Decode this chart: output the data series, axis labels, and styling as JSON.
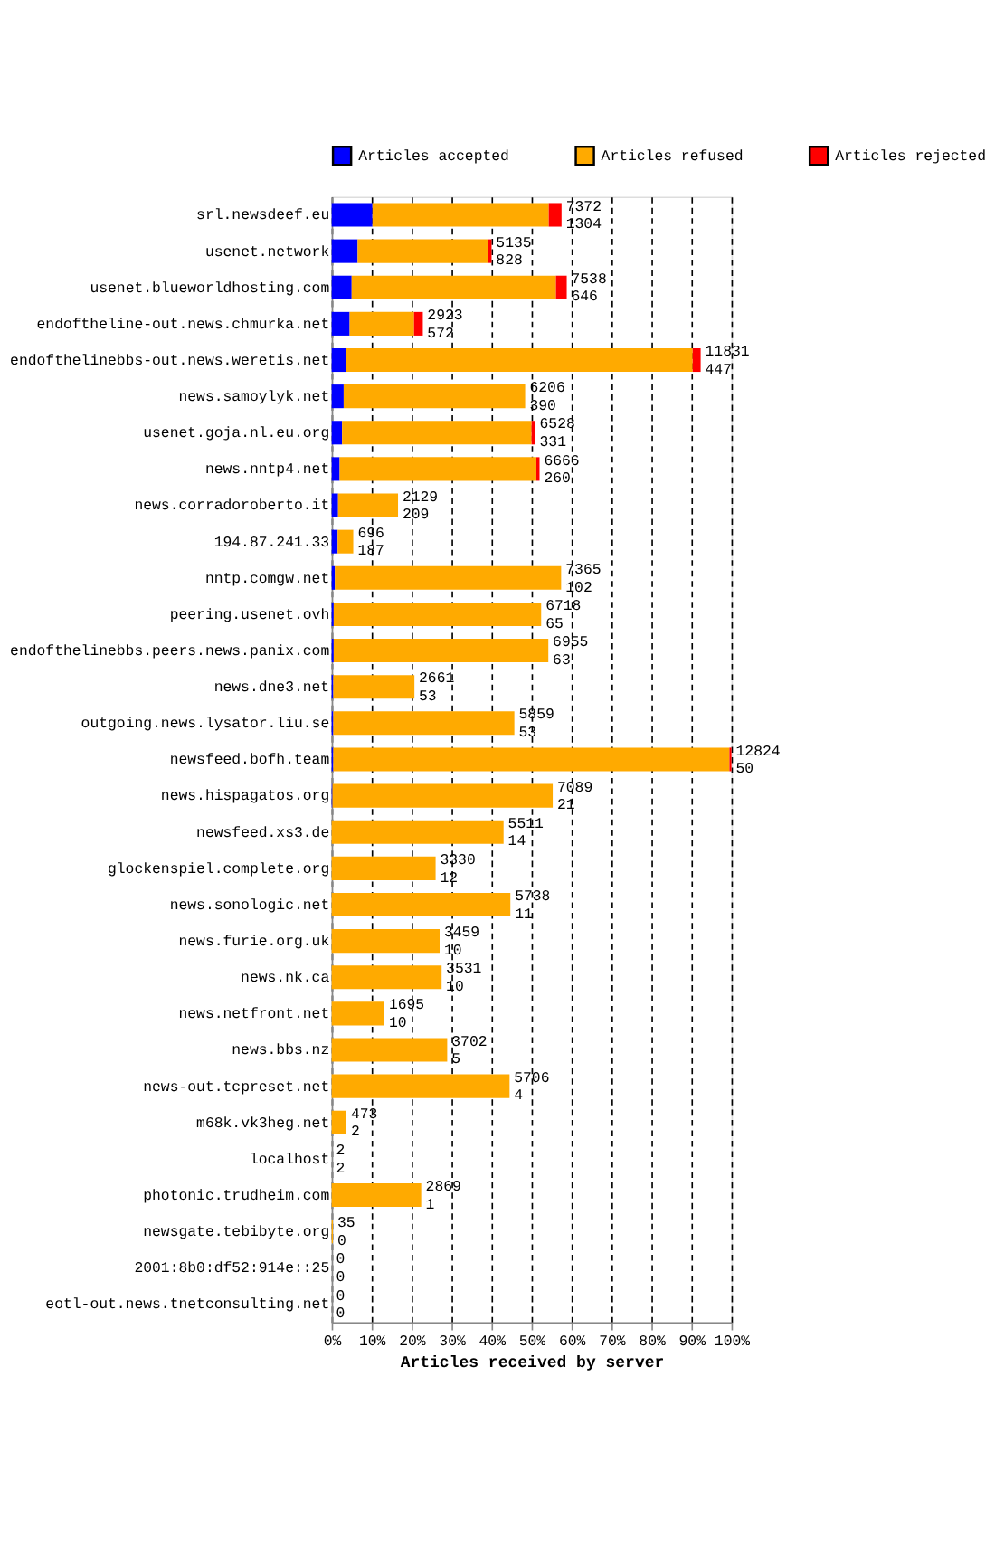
{
  "chart_data": {
    "type": "bar",
    "orientation": "horizontal",
    "stacked": true,
    "xlabel": "Articles received by server",
    "categories": [
      "srl.newsdeef.eu",
      "usenet.network",
      "usenet.blueworldhosting.com",
      "endoftheline-out.news.chmurka.net",
      "endofthelinebbs-out.news.weretis.net",
      "news.samoylyk.net",
      "usenet.goja.nl.eu.org",
      "news.nntp4.net",
      "news.corradoroberto.it",
      "194.87.241.33",
      "nntp.comgw.net",
      "peering.usenet.ovh",
      "endofthelinebbs.peers.news.panix.com",
      "news.dne3.net",
      "outgoing.news.lysator.liu.se",
      "newsfeed.bofh.team",
      "news.hispagatos.org",
      "newsfeed.xs3.de",
      "glockenspiel.complete.org",
      "news.sonologic.net",
      "news.furie.org.uk",
      "news.nk.ca",
      "news.netfront.net",
      "news.bbs.nz",
      "news-out.tcpreset.net",
      "m68k.vk3heg.net",
      "localhost",
      "photonic.trudheim.com",
      "newsgate.tebibyte.org",
      "2001:8b0:df52:914e::25",
      "eotl-out.news.tnetconsulting.net"
    ],
    "series": [
      {
        "name": "Articles accepted",
        "color": "#0000ff",
        "values": [
          10.2,
          6.5,
          5.0,
          4.5,
          3.5,
          3.0,
          2.6,
          2.0,
          1.6,
          1.5,
          0.8,
          0.5,
          0.5,
          0.4,
          0.4,
          0.4,
          0.2,
          0,
          0,
          0,
          0,
          0,
          0,
          0,
          0,
          0,
          0,
          0,
          0,
          0,
          0
        ]
      },
      {
        "name": "Articles refused",
        "color": "#ffaa00",
        "values": [
          44.1,
          32.6,
          51.1,
          16.1,
          86.8,
          45.4,
          47.4,
          49.2,
          15.0,
          3.9,
          56.6,
          51.9,
          53.7,
          20.3,
          45.3,
          99.1,
          55.1,
          43.0,
          26.0,
          44.7,
          27.0,
          27.5,
          13.2,
          28.9,
          44.5,
          3.7,
          0,
          22.4,
          0.3,
          0,
          0
        ]
      },
      {
        "name": "Articles rejected",
        "color": "#ff0000",
        "values": [
          3.2,
          0.9,
          2.7,
          2.2,
          2.0,
          0,
          0.9,
          0.8,
          0,
          0,
          0,
          0,
          0,
          0,
          0,
          0.5,
          0,
          0,
          0,
          0,
          0,
          0,
          0,
          0,
          0,
          0,
          0,
          0,
          0,
          0,
          0
        ]
      }
    ],
    "annotations": [
      {
        "text": "7372",
        "x": 57.5,
        "y": "srl.newsdeef.eu"
      },
      {
        "text": "1304",
        "x": 57.5,
        "y": "srl.newsdeef.eu"
      },
      {
        "text": "5135",
        "x": 40.0,
        "y": "usenet.network"
      },
      {
        "text": "828",
        "x": 40.0,
        "y": "usenet.network"
      },
      {
        "text": "7538",
        "x": 58.8,
        "y": "usenet.blueworldhosting.com"
      },
      {
        "text": "646",
        "x": 58.8,
        "y": "usenet.blueworldhosting.com"
      },
      {
        "text": "2923",
        "x": 22.8,
        "y": "endoftheline-out.news.chmurka.net"
      },
      {
        "text": "572",
        "x": 22.8,
        "y": "endoftheline-out.news.chmurka.net"
      },
      {
        "text": "11831",
        "x": 92.3,
        "y": "endofthelinebbs-out.news.weretis.net"
      },
      {
        "text": "447",
        "x": 92.3,
        "y": "endofthelinebbs-out.news.weretis.net"
      },
      {
        "text": "6206",
        "x": 48.4,
        "y": "news.samoylyk.net"
      },
      {
        "text": "390",
        "x": 48.4,
        "y": "news.samoylyk.net"
      },
      {
        "text": "6528",
        "x": 50.9,
        "y": "usenet.goja.nl.eu.org"
      },
      {
        "text": "331",
        "x": 50.9,
        "y": "usenet.goja.nl.eu.org"
      },
      {
        "text": "6666",
        "x": 52.0,
        "y": "news.nntp4.net"
      },
      {
        "text": "260",
        "x": 52.0,
        "y": "news.nntp4.net"
      },
      {
        "text": "2129",
        "x": 16.6,
        "y": "news.corradoroberto.it"
      },
      {
        "text": "209",
        "x": 16.6,
        "y": "news.corradoroberto.it"
      },
      {
        "text": "696",
        "x": 5.4,
        "y": "194.87.241.33"
      },
      {
        "text": "187",
        "x": 5.4,
        "y": "194.87.241.33"
      },
      {
        "text": "7365",
        "x": 57.4,
        "y": "nntp.comgw.net"
      },
      {
        "text": "102",
        "x": 57.4,
        "y": "nntp.comgw.net"
      },
      {
        "text": "6718",
        "x": 52.4,
        "y": "peering.usenet.ovh"
      },
      {
        "text": "65",
        "x": 52.4,
        "y": "peering.usenet.ovh"
      },
      {
        "text": "6955",
        "x": 54.2,
        "y": "endofthelinebbs.peers.news.panix.com"
      },
      {
        "text": "63",
        "x": 54.2,
        "y": "endofthelinebbs.peers.news.panix.com"
      },
      {
        "text": "2661",
        "x": 20.7,
        "y": "news.dne3.net"
      },
      {
        "text": "53",
        "x": 20.7,
        "y": "news.dne3.net"
      },
      {
        "text": "5859",
        "x": 45.7,
        "y": "outgoing.news.lysator.liu.se"
      },
      {
        "text": "53",
        "x": 45.7,
        "y": "outgoing.news.lysator.liu.se"
      },
      {
        "text": "12824",
        "x": 100.0,
        "y": "newsfeed.bofh.team"
      },
      {
        "text": "50",
        "x": 100.0,
        "y": "newsfeed.bofh.team"
      },
      {
        "text": "7089",
        "x": 55.3,
        "y": "news.hispagatos.org"
      },
      {
        "text": "21",
        "x": 55.3,
        "y": "news.hispagatos.org"
      },
      {
        "text": "5511",
        "x": 43.0,
        "y": "newsfeed.xs3.de"
      },
      {
        "text": "14",
        "x": 43.0,
        "y": "newsfeed.xs3.de"
      },
      {
        "text": "3330",
        "x": 26.0,
        "y": "glockenspiel.complete.org"
      },
      {
        "text": "12",
        "x": 26.0,
        "y": "glockenspiel.complete.org"
      },
      {
        "text": "5738",
        "x": 44.7,
        "y": "news.sonologic.net"
      },
      {
        "text": "11",
        "x": 44.7,
        "y": "news.sonologic.net"
      },
      {
        "text": "3459",
        "x": 27.0,
        "y": "news.furie.org.uk"
      },
      {
        "text": "10",
        "x": 27.0,
        "y": "news.furie.org.uk"
      },
      {
        "text": "3531",
        "x": 27.5,
        "y": "news.nk.ca"
      },
      {
        "text": "10",
        "x": 27.5,
        "y": "news.nk.ca"
      },
      {
        "text": "1695",
        "x": 13.2,
        "y": "news.netfront.net"
      },
      {
        "text": "10",
        "x": 13.2,
        "y": "news.netfront.net"
      },
      {
        "text": "3702",
        "x": 28.9,
        "y": "news.bbs.nz"
      },
      {
        "text": "5",
        "x": 28.9,
        "y": "news.bbs.nz"
      },
      {
        "text": "5706",
        "x": 44.5,
        "y": "news-out.tcpreset.net"
      },
      {
        "text": "4",
        "x": 44.5,
        "y": "news-out.tcpreset.net"
      },
      {
        "text": "473",
        "x": 3.7,
        "y": "m68k.vk3heg.net"
      },
      {
        "text": "2",
        "x": 3.7,
        "y": "m68k.vk3heg.net"
      },
      {
        "text": "2",
        "x": 0,
        "y": "localhost"
      },
      {
        "text": "2",
        "x": 0,
        "y": "localhost"
      },
      {
        "text": "2869",
        "x": 22.4,
        "y": "photonic.trudheim.com"
      },
      {
        "text": "1",
        "x": 22.4,
        "y": "photonic.trudheim.com"
      },
      {
        "text": "35",
        "x": 0.3,
        "y": "newsgate.tebibyte.org"
      },
      {
        "text": "0",
        "x": 0.3,
        "y": "newsgate.tebibyte.org"
      },
      {
        "text": "0",
        "x": 0,
        "y": "2001:8b0:df52:914e::25"
      },
      {
        "text": "0",
        "x": 0,
        "y": "2001:8b0:df52:914e::25"
      },
      {
        "text": "0",
        "x": 0,
        "y": "eotl-out.news.tnetconsulting.net"
      },
      {
        "text": "0",
        "x": 0,
        "y": "eotl-out.news.tnetconsulting.net"
      }
    ],
    "xlim": [
      0,
      100
    ],
    "xticks": [
      {
        "value": 0,
        "label": "0%"
      },
      {
        "value": 10,
        "label": "10%"
      },
      {
        "value": 20,
        "label": "20%"
      },
      {
        "value": 30,
        "label": "30%"
      },
      {
        "value": 40,
        "label": "40%"
      },
      {
        "value": 50,
        "label": "50%"
      },
      {
        "value": 60,
        "label": "60%"
      },
      {
        "value": 70,
        "label": "70%"
      },
      {
        "value": 80,
        "label": "80%"
      },
      {
        "value": 90,
        "label": "90%"
      },
      {
        "value": 100,
        "label": "100%"
      }
    ],
    "grid": "x",
    "legend": "top"
  }
}
